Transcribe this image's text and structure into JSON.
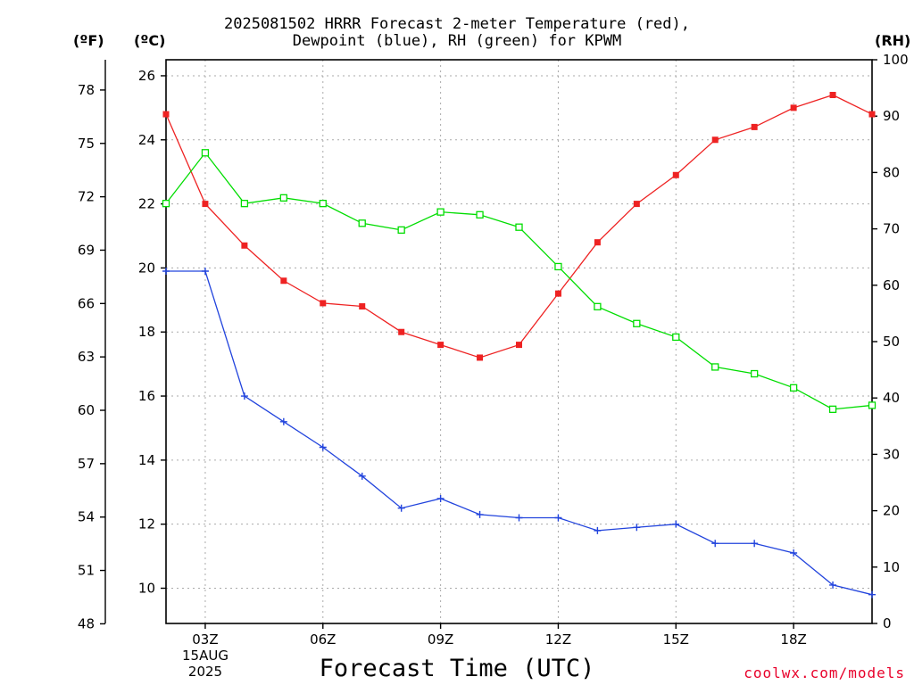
{
  "title_line1": "2025081502 HRRR Forecast 2-meter Temperature (red),",
  "title_line2": "Dewpoint (blue), RH (green) for KPWM",
  "units": {
    "left_outer": "(ºF)",
    "left_inner": "(ºC)",
    "right": "(RH)"
  },
  "xlabel": "Forecast Time (UTC)",
  "credit": "coolwx.com/models",
  "date_label": {
    "day": "15AUG",
    "year": "2025"
  },
  "colors": {
    "temperature": "#ee2222",
    "dewpoint": "#2244dd",
    "rh": "#00dd00",
    "grid": "#aaaaaa"
  },
  "chart_data": {
    "type": "line",
    "x_unit": "forecast hour (UTC)",
    "x": [
      2,
      3,
      4,
      5,
      6,
      7,
      8,
      9,
      10,
      11,
      12,
      13,
      14,
      15,
      16,
      17,
      18,
      19,
      20
    ],
    "x_ticks": [
      3,
      6,
      9,
      12,
      15,
      18
    ],
    "x_tick_labels": [
      "03Z",
      "06Z",
      "09Z",
      "12Z",
      "15Z",
      "18Z"
    ],
    "xlim": [
      2,
      20
    ],
    "celsius_axis": {
      "ylim": [
        8.9,
        26.5
      ],
      "ticks": [
        10,
        12,
        14,
        16,
        18,
        20,
        22,
        24,
        26
      ],
      "tick_labels": [
        "10",
        "12",
        "14",
        "16",
        "18",
        "20",
        "22",
        "24",
        "26"
      ]
    },
    "fahrenheit_axis": {
      "ticks": [
        48,
        51,
        54,
        57,
        60,
        63,
        66,
        69,
        72,
        75,
        78
      ],
      "tick_labels": [
        "48",
        "51",
        "54",
        "57",
        "60",
        "63",
        "66",
        "69",
        "72",
        "75",
        "78"
      ]
    },
    "rh_axis": {
      "ylim": [
        0,
        100
      ],
      "ticks": [
        0,
        10,
        20,
        30,
        40,
        50,
        60,
        70,
        80,
        90,
        100
      ],
      "tick_labels": [
        "0",
        "10",
        "20",
        "30",
        "40",
        "50",
        "60",
        "70",
        "80",
        "90",
        "100"
      ]
    },
    "grid": true,
    "series": [
      {
        "values": [
          24.8,
          22.0,
          20.7,
          19.6,
          18.9,
          18.8,
          18.0,
          17.6,
          17.2,
          17.6,
          19.2,
          20.8,
          22.0,
          22.9,
          24.0,
          24.4,
          25.0,
          25.4,
          24.8
        ],
        "marker": "square-filled",
        "axis": "celsius"
      },
      {
        "values": [
          19.9,
          19.9,
          16.0,
          15.2,
          14.4,
          13.5,
          12.5,
          12.8,
          12.3,
          12.2,
          12.2,
          11.8,
          11.9,
          12.0,
          11.4,
          11.4,
          11.1,
          10.1,
          9.8
        ],
        "marker": "plus",
        "axis": "celsius"
      },
      {
        "values": [
          74.5,
          83.5,
          74.5,
          75.5,
          74.5,
          71.0,
          69.8,
          73.0,
          72.5,
          70.3,
          63.3,
          56.2,
          53.2,
          50.8,
          45.5,
          44.3,
          41.8,
          38.0,
          38.7
        ],
        "marker": "square-open",
        "axis": "rh"
      }
    ]
  }
}
